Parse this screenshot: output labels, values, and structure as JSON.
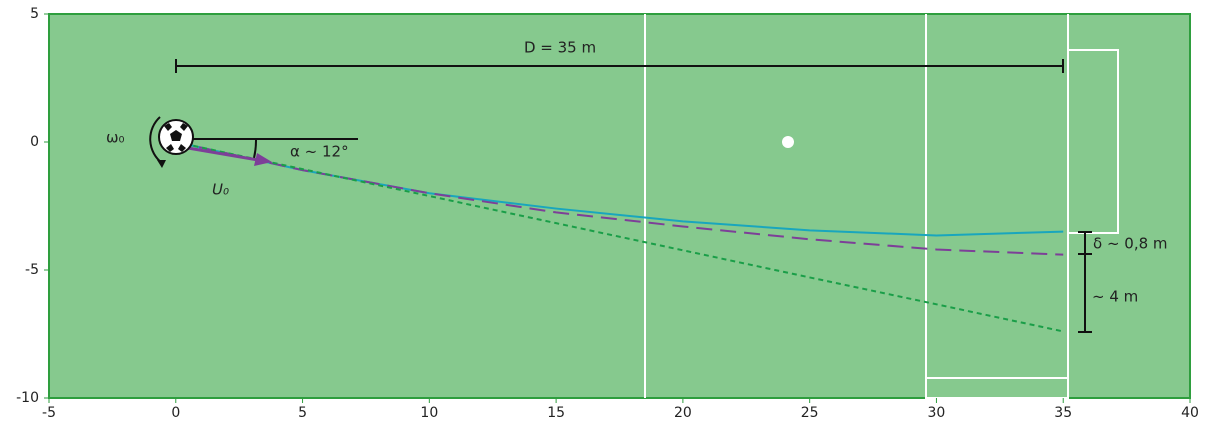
{
  "chart_data": {
    "type": "line",
    "x": [
      0,
      5,
      10,
      15,
      20,
      25,
      30,
      35
    ],
    "series": [
      {
        "color": "#19a6bd",
        "style": "solid",
        "values": [
          0,
          -1.1,
          -2.0,
          -2.6,
          -3.1,
          -3.45,
          -3.65,
          -3.5
        ]
      },
      {
        "color": "#7d3f98",
        "style": "dashed",
        "values": [
          0,
          -1.1,
          -2.0,
          -2.75,
          -3.3,
          -3.8,
          -4.2,
          -4.4
        ]
      },
      {
        "color": "#1a9e48",
        "style": "dotted",
        "values": [
          0,
          -1.06,
          -2.11,
          -3.17,
          -4.23,
          -5.29,
          -6.34,
          -7.4
        ]
      }
    ],
    "xlim": [
      -5,
      40
    ],
    "xticks": [
      -5,
      0,
      5,
      10,
      15,
      20,
      25,
      30,
      35,
      40
    ],
    "ylim": [
      -10,
      5
    ],
    "yticks": [
      -10,
      -5,
      0,
      5
    ],
    "annotations": [
      "D = 35 m",
      "α ~ 12°",
      "ω₀",
      "U₀",
      "δ ~ 0,8 m",
      "~ 4 m"
    ]
  }
}
